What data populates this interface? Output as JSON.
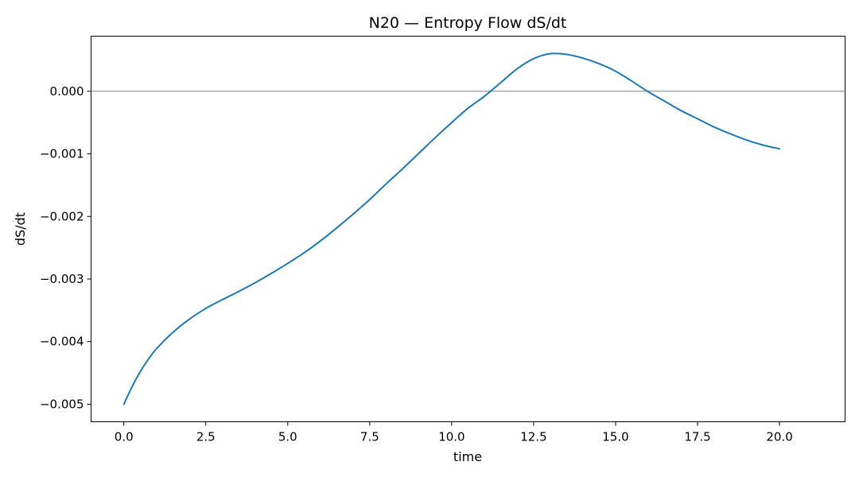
{
  "chart_data": {
    "type": "line",
    "title": "N20 — Entropy Flow dS/dt",
    "xlabel": "time",
    "ylabel": "dS/dt",
    "xlim": [
      -1.0,
      22.0
    ],
    "ylim": [
      -0.00528,
      0.00088
    ],
    "xticks": [
      0.0,
      2.5,
      5.0,
      7.5,
      10.0,
      12.5,
      15.0,
      17.5,
      20.0
    ],
    "xtick_labels": [
      "0.0",
      "2.5",
      "5.0",
      "7.5",
      "10.0",
      "12.5",
      "15.0",
      "17.5",
      "20.0"
    ],
    "yticks": [
      -0.005,
      -0.004,
      -0.003,
      -0.002,
      -0.001,
      0.0
    ],
    "ytick_labels": [
      "−0.005",
      "−0.004",
      "−0.003",
      "−0.002",
      "−0.001",
      "0.000"
    ],
    "grid": false,
    "reference_line_y": 0.0,
    "colors": {
      "series": "#1f77b4",
      "reference_line": "#808080"
    },
    "series": [
      {
        "x": [
          0.0,
          0.25,
          0.5,
          0.75,
          1.0,
          1.5,
          2.0,
          2.5,
          3.0,
          3.5,
          4.0,
          4.5,
          5.0,
          5.5,
          6.0,
          6.5,
          7.0,
          7.5,
          8.0,
          8.5,
          9.0,
          9.5,
          10.0,
          10.5,
          11.0,
          11.5,
          12.0,
          12.5,
          13.0,
          13.5,
          14.0,
          14.5,
          15.0,
          15.5,
          16.0,
          16.5,
          17.0,
          17.5,
          18.0,
          18.5,
          19.0,
          19.5,
          20.0
        ],
        "y": [
          -0.005,
          -0.00472,
          -0.00448,
          -0.00428,
          -0.00411,
          -0.00385,
          -0.00364,
          -0.00347,
          -0.00333,
          -0.0032,
          -0.00306,
          -0.00291,
          -0.00275,
          -0.00258,
          -0.00239,
          -0.00218,
          -0.00196,
          -0.00173,
          -0.00148,
          -0.00124,
          -0.00099,
          -0.00074,
          -0.0005,
          -0.00027,
          -8e-05,
          0.00014,
          0.00036,
          0.00052,
          0.0006,
          0.00059,
          0.00053,
          0.00044,
          0.00032,
          0.00016,
          -1e-05,
          -0.00016,
          -0.00031,
          -0.00044,
          -0.00057,
          -0.00068,
          -0.00078,
          -0.00086,
          -0.00092
        ]
      }
    ]
  }
}
